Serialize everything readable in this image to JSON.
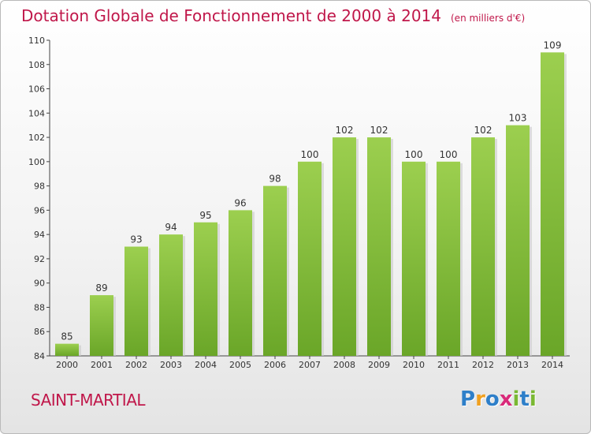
{
  "title": "Dotation Globale de Fonctionnement de 2000 à 2014",
  "unit": "(en milliers d'€)",
  "commune": "SAINT-MARTIAL",
  "logo": {
    "text": "Proxiti",
    "letters": [
      "P",
      "r",
      "o",
      "x",
      "i",
      "t",
      "i"
    ],
    "colors": [
      "#2e7fc9",
      "#f0a020",
      "#2e7fc9",
      "#d92a7a",
      "#7ab833",
      "#2e7fc9",
      "#7ab833"
    ]
  },
  "colors": {
    "title": "#c0174a",
    "bar_top": "#9ccf4f",
    "bar_bottom": "#6aa628",
    "bar_shadow": "#c9c9c9"
  },
  "chart_data": {
    "type": "bar",
    "categories": [
      "2000",
      "2001",
      "2002",
      "2003",
      "2004",
      "2005",
      "2006",
      "2007",
      "2008",
      "2009",
      "2010",
      "2011",
      "2012",
      "2013",
      "2014"
    ],
    "values": [
      85,
      89,
      93,
      94,
      95,
      96,
      98,
      100,
      102,
      102,
      100,
      100,
      102,
      103,
      109
    ],
    "yticks": [
      84,
      86,
      88,
      90,
      92,
      94,
      96,
      98,
      100,
      102,
      104,
      106,
      108,
      110
    ],
    "ylim": [
      84,
      110
    ],
    "grid": false,
    "data_labels": true
  }
}
